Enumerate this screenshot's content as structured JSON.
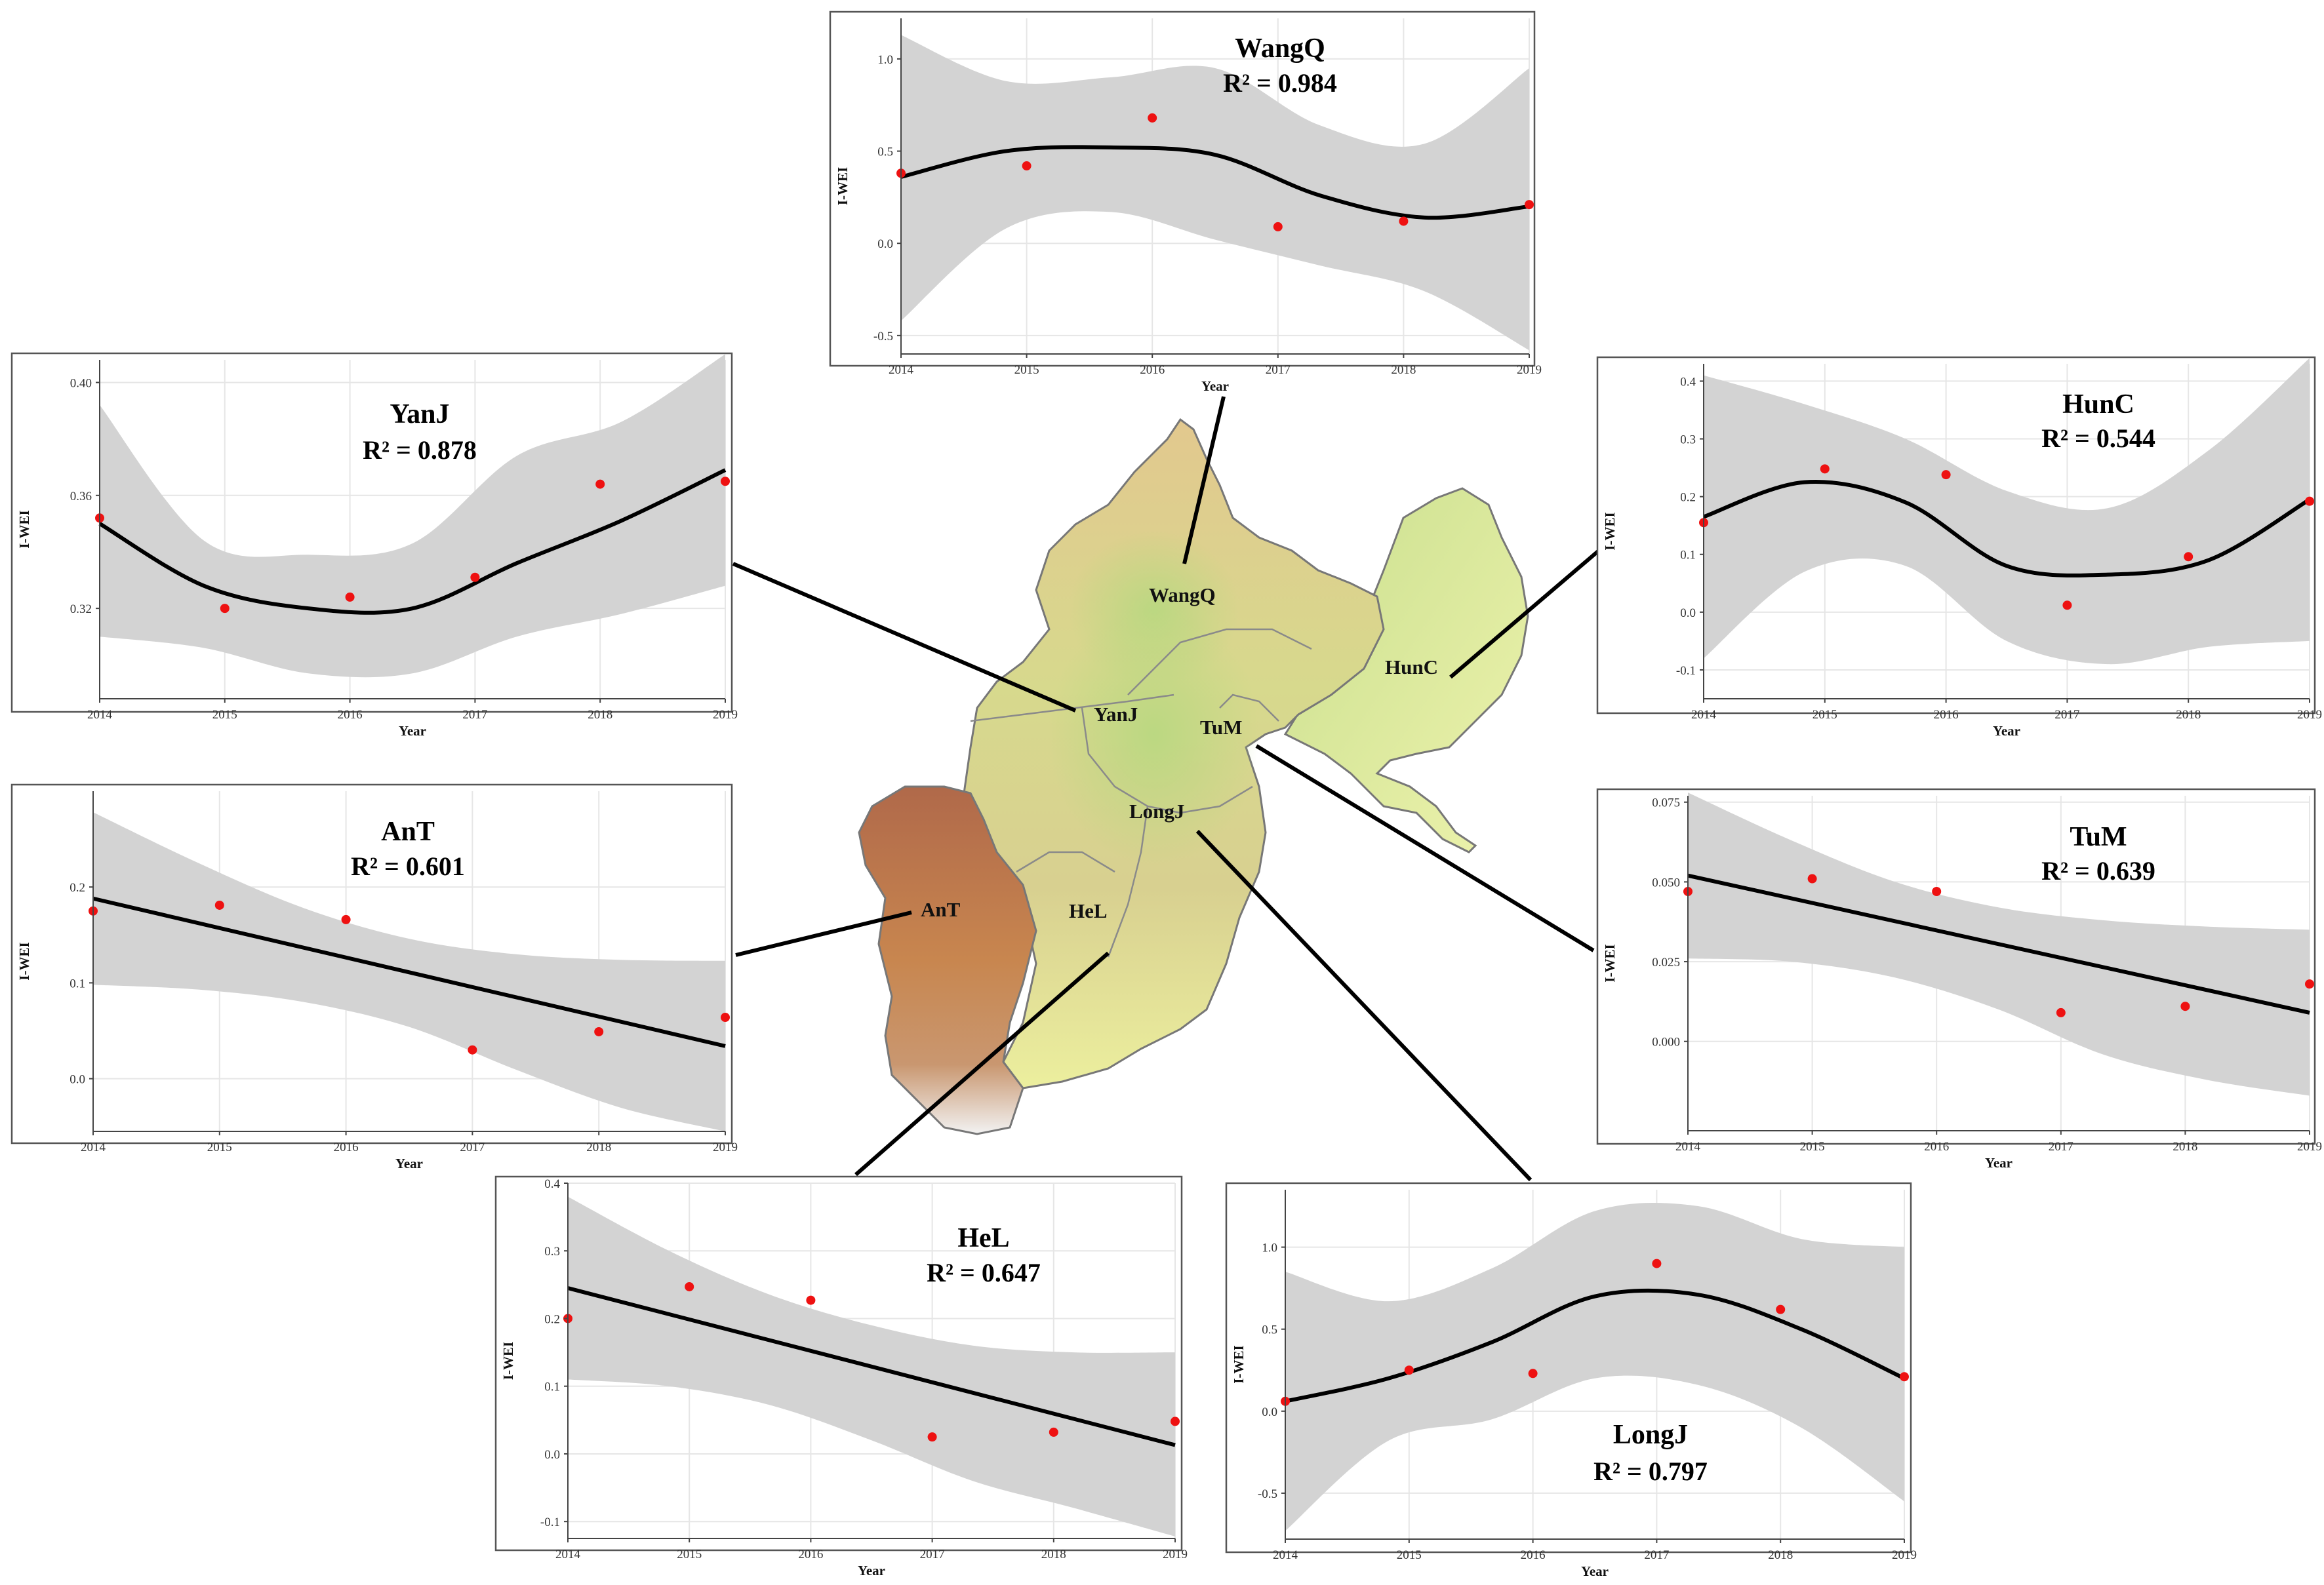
{
  "map": {
    "labels": [
      "WangQ",
      "HunC",
      "YanJ",
      "TuM",
      "LongJ",
      "AnT",
      "HeL"
    ]
  },
  "chart_data": [
    {
      "id": "WangQ",
      "type": "scatter",
      "title": "WangQ",
      "r2": "R² = 0.984",
      "fit": "loess",
      "xlabel": "Year",
      "ylabel": "I-WEI",
      "x": [
        2014,
        2015,
        2016,
        2017,
        2018,
        2019
      ],
      "values": [
        0.38,
        0.42,
        0.68,
        0.09,
        0.12,
        0.21
      ],
      "xlim": [
        2014,
        2019
      ],
      "ylim": [
        -0.6,
        1.22
      ],
      "yticks": [
        -0.5,
        0.0,
        0.5,
        1.0
      ],
      "ytick_labels": [
        "-0.5",
        "0.0",
        "0.5",
        "1.0"
      ],
      "fit_line": [
        0.36,
        0.5,
        0.52,
        0.48,
        0.26,
        0.14,
        0.2
      ],
      "band_upper": [
        1.13,
        0.88,
        0.9,
        0.95,
        0.64,
        0.54,
        0.95
      ],
      "band_lower": [
        -0.42,
        0.08,
        0.17,
        0.02,
        -0.12,
        -0.26,
        -0.58
      ]
    },
    {
      "id": "YanJ",
      "type": "scatter",
      "title": "YanJ",
      "r2": "R² = 0.878",
      "fit": "loess",
      "xlabel": "Year",
      "ylabel": "I-WEI",
      "x": [
        2014,
        2015,
        2016,
        2017,
        2018,
        2019
      ],
      "values": [
        0.352,
        0.32,
        0.324,
        0.331,
        0.364,
        0.365
      ],
      "xlim": [
        2014,
        2019
      ],
      "ylim": [
        0.288,
        0.408
      ],
      "yticks": [
        0.32,
        0.36,
        0.4
      ],
      "ytick_labels": [
        "0.32",
        "0.36",
        "0.40"
      ],
      "fit_line": [
        0.35,
        0.328,
        0.32,
        0.32,
        0.336,
        0.351,
        0.369
      ],
      "band_upper": [
        0.392,
        0.344,
        0.339,
        0.343,
        0.374,
        0.386,
        0.41
      ],
      "band_lower": [
        0.31,
        0.306,
        0.297,
        0.297,
        0.31,
        0.318,
        0.328
      ]
    },
    {
      "id": "HunC",
      "type": "scatter",
      "title": "HunC",
      "r2": "R² = 0.544",
      "fit": "loess",
      "xlabel": "Year",
      "ylabel": "I-WEI",
      "x": [
        2014,
        2015,
        2016,
        2017,
        2018,
        2019
      ],
      "values": [
        0.155,
        0.248,
        0.238,
        0.012,
        0.096,
        0.192
      ],
      "xlim": [
        2014,
        2019
      ],
      "ylim": [
        -0.15,
        0.43
      ],
      "yticks": [
        -0.1,
        0.0,
        0.1,
        0.2,
        0.3,
        0.4
      ],
      "ytick_labels": [
        "-0.1",
        "0.0",
        "0.1",
        "0.2",
        "0.3",
        "0.4"
      ],
      "fit_line": [
        0.165,
        0.225,
        0.19,
        0.08,
        0.065,
        0.09,
        0.195
      ],
      "band_upper": [
        0.41,
        0.36,
        0.3,
        0.21,
        0.18,
        0.28,
        0.44
      ],
      "band_lower": [
        -0.08,
        0.07,
        0.08,
        -0.05,
        -0.09,
        -0.06,
        -0.05
      ]
    },
    {
      "id": "AnT",
      "type": "scatter",
      "title": "AnT",
      "r2": "R² = 0.601",
      "fit": "linear",
      "xlabel": "Year",
      "ylabel": "I-WEI",
      "x": [
        2014,
        2015,
        2016,
        2017,
        2018,
        2019
      ],
      "values": [
        0.175,
        0.181,
        0.166,
        0.03,
        0.049,
        0.064
      ],
      "xlim": [
        2014,
        2019
      ],
      "ylim": [
        -0.055,
        0.3
      ],
      "yticks": [
        0.0,
        0.1,
        0.2
      ],
      "ytick_labels": [
        "0.0",
        "0.1",
        "0.2"
      ],
      "fit_line": [
        0.188,
        0.159,
        0.129,
        0.1,
        0.07,
        0.047,
        0.034
      ],
      "band_upper": [
        0.278,
        0.225,
        0.178,
        0.146,
        0.13,
        0.124,
        0.123
      ],
      "band_lower": [
        0.098,
        0.093,
        0.08,
        0.054,
        0.01,
        -0.03,
        -0.055
      ]
    },
    {
      "id": "TuM",
      "type": "scatter",
      "title": "TuM",
      "r2": "R² = 0.639",
      "fit": "linear",
      "xlabel": "Year",
      "ylabel": "I-WEI",
      "x": [
        2014,
        2015,
        2016,
        2017,
        2018,
        2019
      ],
      "values": [
        0.047,
        0.051,
        0.047,
        0.009,
        0.011,
        0.018
      ],
      "xlim": [
        2014,
        2019
      ],
      "ylim": [
        -0.028,
        0.077
      ],
      "yticks": [
        0.0,
        0.025,
        0.05,
        0.075
      ],
      "ytick_labels": [
        "0.000",
        "0.025",
        "0.050",
        "0.075"
      ],
      "fit_line": [
        0.052,
        0.044,
        0.035,
        0.026,
        0.017,
        0.012,
        0.009
      ],
      "band_upper": [
        0.078,
        0.063,
        0.05,
        0.042,
        0.038,
        0.036,
        0.035
      ],
      "band_lower": [
        0.026,
        0.025,
        0.02,
        0.01,
        -0.004,
        -0.012,
        -0.017
      ]
    },
    {
      "id": "HeL",
      "type": "scatter",
      "title": "HeL",
      "r2": "R² = 0.647",
      "fit": "linear",
      "xlabel": "Year",
      "ylabel": "I-WEI",
      "x": [
        2014,
        2015,
        2016,
        2017,
        2018,
        2019
      ],
      "values": [
        0.2,
        0.247,
        0.227,
        0.025,
        0.032,
        0.048
      ],
      "xlim": [
        2014,
        2019
      ],
      "ylim": [
        -0.125,
        0.4
      ],
      "yticks": [
        -0.1,
        0.0,
        0.1,
        0.2,
        0.3,
        0.4
      ],
      "ytick_labels": [
        "-0.1",
        "0.0",
        "0.1",
        "0.2",
        "0.3",
        "0.4"
      ],
      "fit_line": [
        0.245,
        0.2,
        0.153,
        0.106,
        0.059,
        0.036,
        0.013
      ],
      "band_upper": [
        0.38,
        0.3,
        0.235,
        0.19,
        0.16,
        0.15,
        0.15
      ],
      "band_lower": [
        0.11,
        0.1,
        0.072,
        0.02,
        -0.04,
        -0.08,
        -0.122
      ]
    },
    {
      "id": "LongJ",
      "type": "scatter",
      "title": "LongJ",
      "r2": "R² = 0.797",
      "fit": "loess",
      "xlabel": "Year",
      "ylabel": "I-WEI",
      "x": [
        2014,
        2015,
        2016,
        2017,
        2018,
        2019
      ],
      "values": [
        0.06,
        0.25,
        0.23,
        0.9,
        0.62,
        0.21
      ],
      "xlim": [
        2014,
        2019
      ],
      "ylim": [
        -0.78,
        1.35
      ],
      "yticks": [
        -0.5,
        0.0,
        0.5,
        1.0
      ],
      "ytick_labels": [
        "-0.5",
        "0.0",
        "0.5",
        "1.0"
      ],
      "fit_line": [
        0.06,
        0.2,
        0.42,
        0.7,
        0.71,
        0.5,
        0.2
      ],
      "band_upper": [
        0.85,
        0.67,
        0.87,
        1.22,
        1.25,
        1.05,
        1.0
      ],
      "band_lower": [
        -0.73,
        -0.18,
        -0.05,
        0.2,
        0.16,
        -0.1,
        -0.55
      ]
    }
  ]
}
